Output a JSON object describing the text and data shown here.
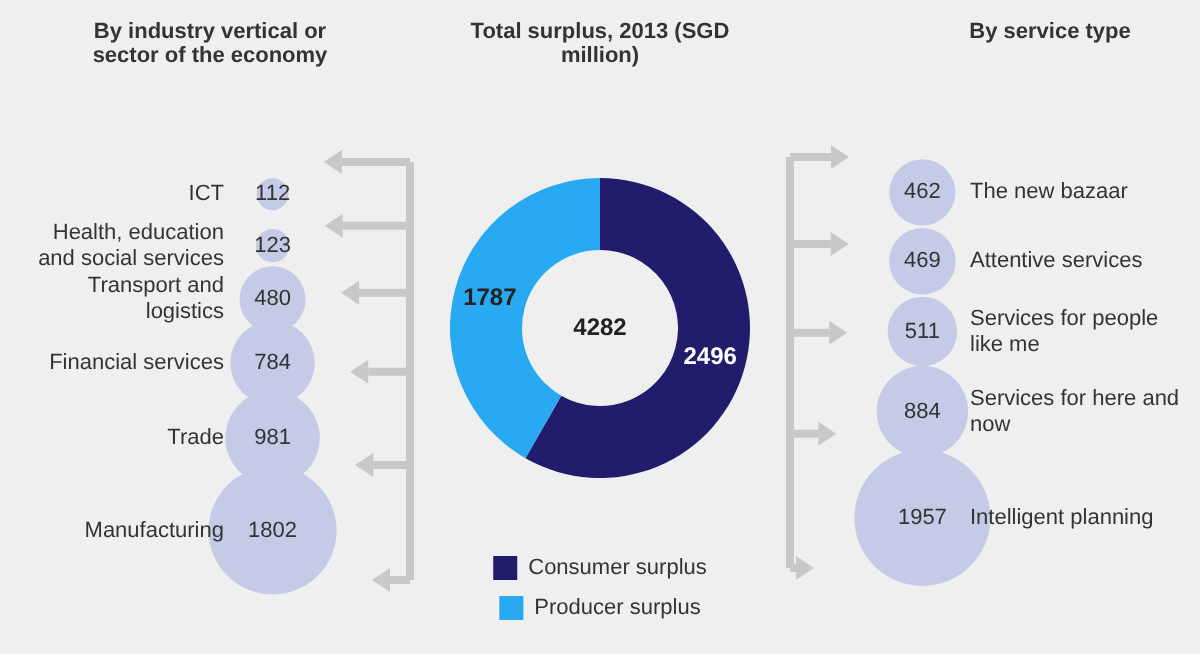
{
  "chart_data": [
    {
      "type": "other",
      "title": "By industry vertical or sector of the economy",
      "categories": [
        "ICT",
        "Health, education and social services",
        "Transport and logistics",
        "Financial services",
        "Trade",
        "Manufacturing"
      ],
      "values": [
        112,
        123,
        480,
        784,
        981,
        1802
      ],
      "color": "#c5cbe6",
      "data_labels": true
    },
    {
      "type": "donut",
      "title": "Total surplus, 2013 (SGD million)",
      "categories": [
        "Consumer surplus",
        "Producer surplus"
      ],
      "values": [
        2496,
        1787
      ],
      "colors": [
        "#211c6b",
        "#29a9f1"
      ],
      "legend": "bottom",
      "data_labels": true,
      "annotations": [
        "4282"
      ]
    },
    {
      "type": "other",
      "title": "By service type",
      "categories": [
        "The new bazaar",
        "Attentive services",
        "Services for people like me",
        "Services for here and now",
        "Intelligent planning"
      ],
      "values": [
        462,
        469,
        511,
        884,
        1957
      ],
      "color": "#c5cbe6",
      "data_labels": true
    }
  ]
}
